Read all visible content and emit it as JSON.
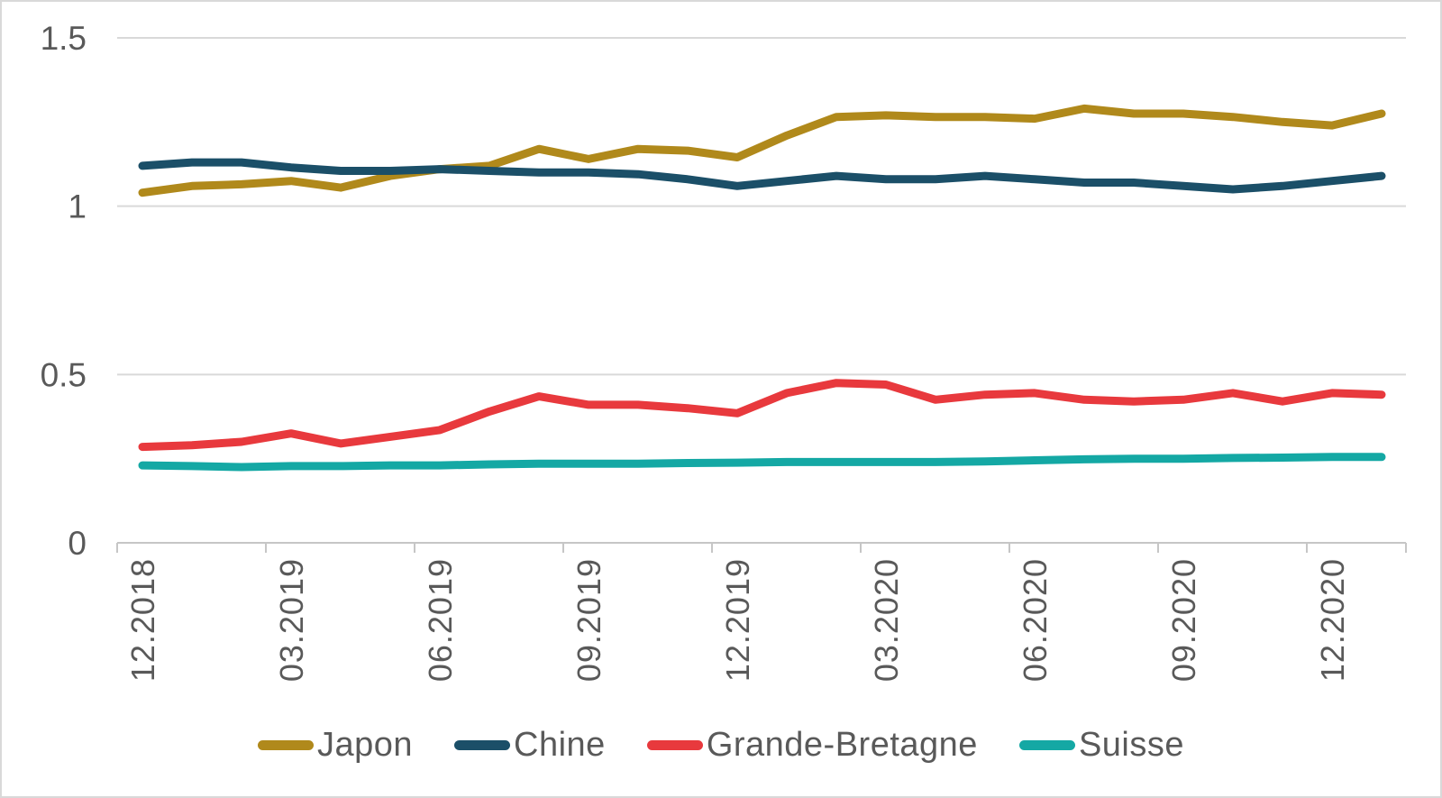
{
  "chart_data": {
    "type": "line",
    "x": [
      "12.2018",
      "01.2019",
      "02.2019",
      "03.2019",
      "04.2019",
      "05.2019",
      "06.2019",
      "07.2019",
      "08.2019",
      "09.2019",
      "10.2019",
      "11.2019",
      "12.2019",
      "01.2020",
      "02.2020",
      "03.2020",
      "04.2020",
      "05.2020",
      "06.2020",
      "07.2020",
      "08.2020",
      "09.2020",
      "10.2020",
      "11.2020",
      "12.2020",
      "01.2021"
    ],
    "x_tick_labels": [
      "12.2018",
      "03.2019",
      "06.2019",
      "09.2019",
      "12.2019",
      "03.2020",
      "06.2020",
      "09.2020",
      "12.2020"
    ],
    "x_tick_label_month_indices": [
      0,
      3,
      6,
      9,
      12,
      15,
      18,
      21,
      24
    ],
    "y_tick_labels": [
      "0",
      "0.5",
      "1",
      "1.5"
    ],
    "yticks": [
      0,
      0.5,
      1,
      1.5
    ],
    "ylim": [
      0,
      1.5
    ],
    "grid": true,
    "legend_position": "bottom",
    "series": [
      {
        "name": "Japon",
        "color": "#B0891B",
        "values": [
          1.04,
          1.06,
          1.065,
          1.075,
          1.055,
          1.09,
          1.11,
          1.12,
          1.17,
          1.14,
          1.17,
          1.165,
          1.145,
          1.21,
          1.265,
          1.27,
          1.265,
          1.265,
          1.26,
          1.29,
          1.275,
          1.275,
          1.265,
          1.25,
          1.24,
          1.275
        ]
      },
      {
        "name": "Chine",
        "color": "#1B4F68",
        "values": [
          1.12,
          1.13,
          1.13,
          1.115,
          1.105,
          1.105,
          1.11,
          1.105,
          1.1,
          1.1,
          1.095,
          1.08,
          1.06,
          1.075,
          1.09,
          1.08,
          1.08,
          1.09,
          1.08,
          1.07,
          1.07,
          1.06,
          1.05,
          1.06,
          1.075,
          1.09
        ]
      },
      {
        "name": "Grande-Bretagne",
        "color": "#E8393D",
        "values": [
          0.285,
          0.29,
          0.3,
          0.325,
          0.295,
          0.315,
          0.335,
          0.39,
          0.435,
          0.41,
          0.41,
          0.4,
          0.385,
          0.445,
          0.475,
          0.47,
          0.425,
          0.44,
          0.445,
          0.425,
          0.42,
          0.425,
          0.445,
          0.42,
          0.445,
          0.44
        ]
      },
      {
        "name": "Suisse",
        "color": "#14A8A4",
        "values": [
          0.23,
          0.228,
          0.225,
          0.228,
          0.228,
          0.23,
          0.23,
          0.233,
          0.235,
          0.235,
          0.235,
          0.237,
          0.238,
          0.24,
          0.24,
          0.24,
          0.24,
          0.242,
          0.245,
          0.248,
          0.25,
          0.25,
          0.252,
          0.253,
          0.255,
          0.255
        ]
      }
    ],
    "colors": {
      "gridline": "#D9D9D9",
      "axis": "#C6C6C6",
      "tick_text": "#595959",
      "background": "#FFFFFF",
      "card_border": "#D9D9D9"
    }
  }
}
